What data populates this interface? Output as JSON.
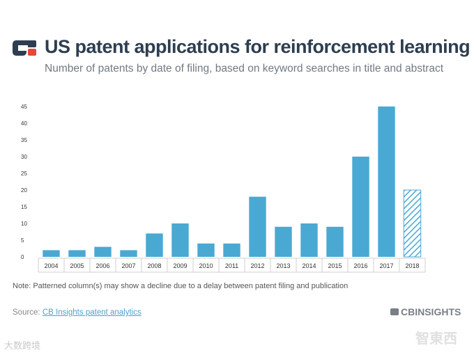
{
  "header": {
    "title": "US patent applications for reinforcement learning",
    "subtitle": "Number of patents by date of filing, based on keyword searches in title and abstract"
  },
  "chart_data": {
    "type": "bar",
    "categories": [
      "2004",
      "2005",
      "2006",
      "2007",
      "2008",
      "2009",
      "2010",
      "2011",
      "2012",
      "2013",
      "2014",
      "2015",
      "2016",
      "2017",
      "2018"
    ],
    "values": [
      2,
      2,
      3,
      2,
      7,
      10,
      4,
      4,
      18,
      9,
      10,
      9,
      30,
      45,
      20
    ],
    "patterned": [
      "2018"
    ],
    "ylim": [
      0,
      45
    ],
    "yticks": [
      0,
      5,
      10,
      15,
      20,
      25,
      30,
      35,
      40,
      45
    ],
    "xlabel": "",
    "ylabel": "",
    "grid": false,
    "colors": {
      "bar": "#4aa9d3",
      "axis": "#cfcfcf",
      "tick_text": "#333333"
    }
  },
  "footer": {
    "note": "Note: Patterned column(s) may show a decline due to a delay between patent filing and publication",
    "source_prefix": "Source: ",
    "source_link": "CB Insights patent analytics",
    "brand": "CBINSIGHTS"
  },
  "watermarks": {
    "left": "大数跨境",
    "right": "智東西"
  },
  "colors": {
    "title": "#2d3e50",
    "subtitle": "#707a84",
    "logo_blue": "#2d3e50",
    "logo_red": "#e2493b"
  }
}
